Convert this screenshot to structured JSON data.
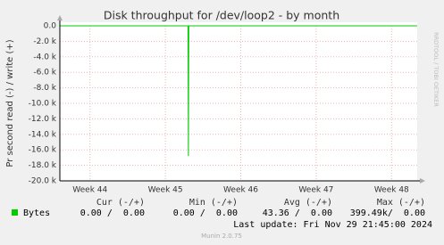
{
  "chart_data": {
    "type": "line",
    "title": "Disk throughput for /dev/loop2 - by month",
    "y_label": "Pr second read (-) / write (+)",
    "side_label": "RRDTOOL / TOBI OETIKER",
    "xlim": [
      43.6,
      48.34
    ],
    "xticks": [
      {
        "value": 44,
        "label": "Week 44"
      },
      {
        "value": 45,
        "label": "Week 45"
      },
      {
        "value": 46,
        "label": "Week 46"
      },
      {
        "value": 47,
        "label": "Week 47"
      },
      {
        "value": 48,
        "label": "Week 48"
      }
    ],
    "ylim": [
      -20000,
      0
    ],
    "yticks": [
      {
        "value": 0,
        "label": "0.0"
      },
      {
        "value": -2000,
        "label": "-2.0 k"
      },
      {
        "value": -4000,
        "label": "-4.0 k"
      },
      {
        "value": -6000,
        "label": "-6.0 k"
      },
      {
        "value": -8000,
        "label": "-8.0 k"
      },
      {
        "value": -10000,
        "label": "-10.0 k"
      },
      {
        "value": -12000,
        "label": "-12.0 k"
      },
      {
        "value": -14000,
        "label": "-14.0 k"
      },
      {
        "value": -16000,
        "label": "-16.0 k"
      },
      {
        "value": -18000,
        "label": "-18.0 k"
      },
      {
        "value": -20000,
        "label": "-20.0 k"
      }
    ],
    "grid": true,
    "x": [
      43.6,
      45.3,
      45.305,
      45.31,
      48.34
    ],
    "series": [
      {
        "name": "Bytes",
        "color": "#00cc00",
        "values": [
          0,
          0,
          -16800,
          0,
          0
        ]
      }
    ],
    "legend_table": {
      "headers": [
        "Cur (-/+)",
        "Min (-/+)",
        "Avg (-/+)",
        "Max (-/+)"
      ],
      "rows": [
        [
          "0.00 /  0.00",
          "0.00 /  0.00",
          "43.36 /  0.00",
          "399.49k/  0.00"
        ]
      ]
    },
    "last_update": "Last update: Fri Nov 29 21:45:00 2024",
    "footer": "Munin 2.0.75"
  }
}
